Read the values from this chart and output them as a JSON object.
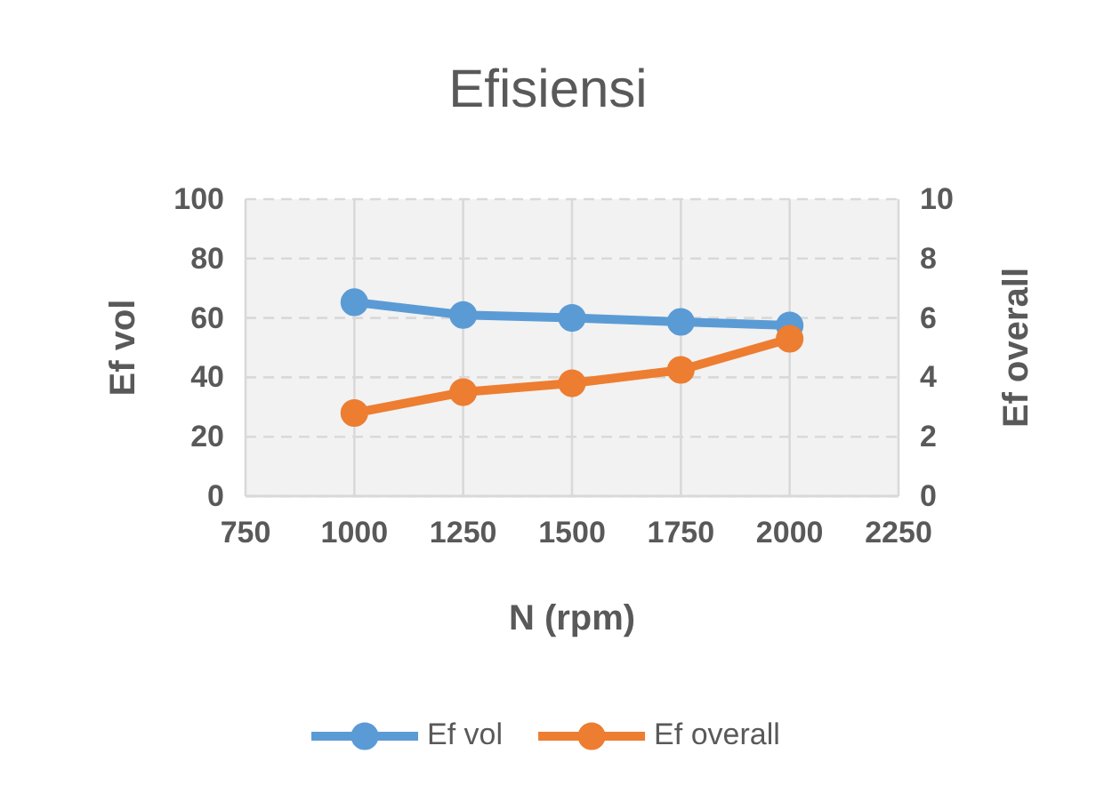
{
  "chart_data": {
    "type": "line",
    "title": "Efisiensi",
    "xlabel": "N (rpm)",
    "ylabel": "Ef vol",
    "y2label": "Ef overall",
    "x": [
      1000,
      1250,
      1500,
      1750,
      2000
    ],
    "series": [
      {
        "name": "Ef vol",
        "color": "#5b9bd5",
        "values": [
          65.3,
          61,
          60,
          58.7,
          57.5
        ]
      },
      {
        "name": "Ef overall",
        "color": "#ed7d31",
        "values": [
          2.8,
          3.5,
          3.8,
          4.25,
          5.3
        ],
        "axis": "y2"
      }
    ],
    "xlim": [
      750,
      2250
    ],
    "xticks": [
      750,
      1000,
      1250,
      1500,
      1750,
      2000,
      2250
    ],
    "ylim": [
      0,
      100
    ],
    "yticks": [
      0,
      20,
      40,
      60,
      80,
      100
    ],
    "y2lim": [
      0,
      10
    ],
    "y2ticks": [
      0,
      2,
      4,
      6,
      8,
      10
    ],
    "grid": true,
    "legend": "bottom",
    "marker": "circle",
    "line_style": "solid"
  }
}
